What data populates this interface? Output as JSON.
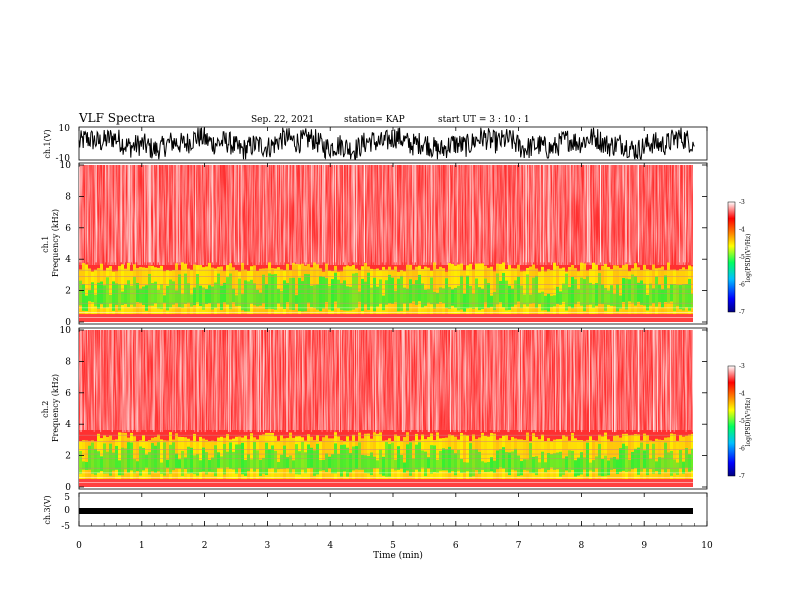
{
  "header": {
    "title": "VLF Spectra",
    "date": "Sep. 22, 2021",
    "station": "station= KAP",
    "start": "start  UT =   3 : 10 : 1"
  },
  "colors": {
    "spectrogram_bg": "#ff2020",
    "band_green": "#33ee33",
    "band_yellow": "#ffee00",
    "trace": "#000000",
    "colormap": [
      "#000080",
      "#0000ff",
      "#00c0ff",
      "#00ff60",
      "#ffff00",
      "#ff8000",
      "#ff0000",
      "#ffffff"
    ]
  },
  "chart_data": [
    {
      "type": "line",
      "name": "ch.1 waveform",
      "ylabel": "ch.1(V)",
      "ylim": [
        -10,
        10
      ],
      "yticks": [
        "10",
        "-10"
      ],
      "xlim": [
        0,
        10
      ],
      "data_extent_min": [
        0,
        9.8
      ]
    },
    {
      "type": "heatmap",
      "name": "ch.1 spectrogram",
      "ylabel": "ch.1 Frequency (kHz)",
      "ylim": [
        0,
        10
      ],
      "yticks": [
        "0",
        "2",
        "4",
        "6",
        "8",
        "10"
      ],
      "xlim": [
        0,
        10
      ],
      "data_extent_min": [
        0,
        9.8
      ],
      "intense_band_khz": [
        0.5,
        3.8
      ],
      "colorbar": {
        "label": "log(PSD)(V²/Hz)",
        "range": [
          -7,
          -3
        ],
        "ticks": [
          "-3",
          "-4",
          "-5",
          "-6",
          "-7"
        ]
      }
    },
    {
      "type": "heatmap",
      "name": "ch.2 spectrogram",
      "ylabel": "ch.2 Frequency (kHz)",
      "ylim": [
        0,
        10
      ],
      "yticks": [
        "0",
        "2",
        "4",
        "6",
        "8",
        "10"
      ],
      "xlim": [
        0,
        10
      ],
      "data_extent_min": [
        0,
        9.8
      ],
      "intense_band_khz": [
        0.5,
        3.5
      ],
      "colorbar": {
        "label": "log(PSD)(V²/Hz)",
        "range": [
          -7,
          -3
        ],
        "ticks": [
          "-3",
          "-4",
          "-5",
          "-6",
          "-7"
        ]
      }
    },
    {
      "type": "line",
      "name": "ch.3 waveform",
      "ylabel": "ch.3(V)",
      "ylim": [
        -5,
        5
      ],
      "yticks": [
        "5",
        "0",
        "-5"
      ],
      "xlim": [
        0,
        10
      ],
      "data_extent_min": [
        0,
        9.8
      ]
    }
  ],
  "xaxis": {
    "label": "Time (min)",
    "ticks": [
      "0",
      "1",
      "2",
      "3",
      "4",
      "5",
      "6",
      "7",
      "8",
      "9",
      "10"
    ]
  }
}
